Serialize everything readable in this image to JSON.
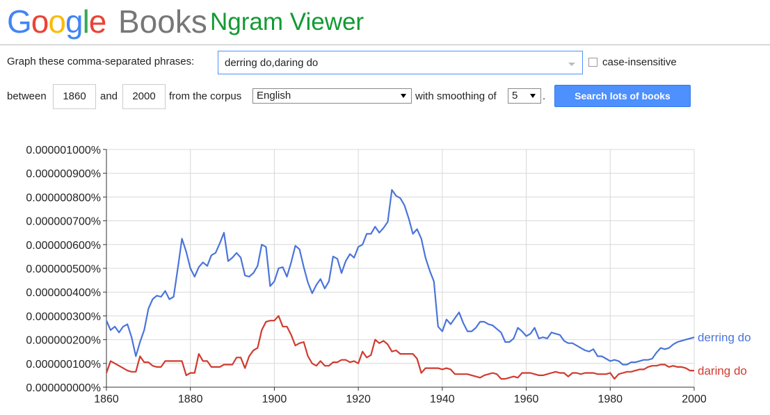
{
  "header": {
    "logo_letters": [
      {
        "ch": "G",
        "color": "#4285f4"
      },
      {
        "ch": "o",
        "color": "#ea4335"
      },
      {
        "ch": "o",
        "color": "#fbbc05"
      },
      {
        "ch": "g",
        "color": "#4285f4"
      },
      {
        "ch": "l",
        "color": "#34a853"
      },
      {
        "ch": "e",
        "color": "#ea4335"
      }
    ],
    "books": "Books",
    "title": "Ngram Viewer"
  },
  "form": {
    "phrases_label": "Graph these comma-separated phrases:",
    "phrases_value": "derring do,daring do",
    "case_insensitive": "case-insensitive",
    "between": "between",
    "start_year": "1860",
    "and": "and",
    "end_year": "2000",
    "from_corpus": "from the corpus",
    "corpus": "English",
    "with_smoothing": "with smoothing of",
    "smoothing": "5",
    "period": ".",
    "search_button": "Search lots of books"
  },
  "chart_data": {
    "type": "line",
    "xlim": [
      1860,
      2000
    ],
    "ylim": [
      0,
      1e-06
    ],
    "x_ticks": [
      "1860",
      "1880",
      "1900",
      "1920",
      "1940",
      "1960",
      "1980",
      "2000"
    ],
    "y_ticks": [
      "0.000000000%",
      "0.000000100%",
      "0.000000200%",
      "0.000000300%",
      "0.000000400%",
      "0.000000500%",
      "0.000000600%",
      "0.000000700%",
      "0.000000800%",
      "0.000000900%",
      "0.000001000%"
    ],
    "grid": true,
    "legend": "right-end-labels",
    "series": [
      {
        "name": "derring do",
        "color": "#4a74db",
        "points": [
          [
            1860,
            0.28
          ],
          [
            1861,
            0.24
          ],
          [
            1862,
            0.255
          ],
          [
            1863,
            0.23
          ],
          [
            1864,
            0.255
          ],
          [
            1865,
            0.265
          ],
          [
            1866,
            0.21
          ],
          [
            1867,
            0.13
          ],
          [
            1868,
            0.19
          ],
          [
            1869,
            0.24
          ],
          [
            1870,
            0.33
          ],
          [
            1871,
            0.37
          ],
          [
            1872,
            0.385
          ],
          [
            1873,
            0.38
          ],
          [
            1874,
            0.405
          ],
          [
            1875,
            0.37
          ],
          [
            1876,
            0.38
          ],
          [
            1877,
            0.5
          ],
          [
            1878,
            0.625
          ],
          [
            1879,
            0.57
          ],
          [
            1880,
            0.5
          ],
          [
            1881,
            0.465
          ],
          [
            1882,
            0.505
          ],
          [
            1883,
            0.525
          ],
          [
            1884,
            0.51
          ],
          [
            1885,
            0.555
          ],
          [
            1886,
            0.565
          ],
          [
            1887,
            0.605
          ],
          [
            1888,
            0.65
          ],
          [
            1889,
            0.53
          ],
          [
            1890,
            0.545
          ],
          [
            1891,
            0.565
          ],
          [
            1892,
            0.545
          ],
          [
            1893,
            0.47
          ],
          [
            1894,
            0.465
          ],
          [
            1895,
            0.48
          ],
          [
            1896,
            0.51
          ],
          [
            1897,
            0.6
          ],
          [
            1898,
            0.59
          ],
          [
            1899,
            0.425
          ],
          [
            1900,
            0.445
          ],
          [
            1901,
            0.5
          ],
          [
            1902,
            0.505
          ],
          [
            1903,
            0.465
          ],
          [
            1904,
            0.525
          ],
          [
            1905,
            0.595
          ],
          [
            1906,
            0.58
          ],
          [
            1907,
            0.505
          ],
          [
            1908,
            0.44
          ],
          [
            1909,
            0.395
          ],
          [
            1910,
            0.43
          ],
          [
            1911,
            0.455
          ],
          [
            1912,
            0.415
          ],
          [
            1913,
            0.445
          ],
          [
            1914,
            0.55
          ],
          [
            1915,
            0.54
          ],
          [
            1916,
            0.48
          ],
          [
            1917,
            0.53
          ],
          [
            1918,
            0.56
          ],
          [
            1919,
            0.545
          ],
          [
            1920,
            0.59
          ],
          [
            1921,
            0.6
          ],
          [
            1922,
            0.645
          ],
          [
            1923,
            0.645
          ],
          [
            1924,
            0.675
          ],
          [
            1925,
            0.65
          ],
          [
            1926,
            0.67
          ],
          [
            1927,
            0.695
          ],
          [
            1928,
            0.83
          ],
          [
            1929,
            0.805
          ],
          [
            1930,
            0.795
          ],
          [
            1931,
            0.765
          ],
          [
            1932,
            0.71
          ],
          [
            1933,
            0.645
          ],
          [
            1934,
            0.665
          ],
          [
            1935,
            0.625
          ],
          [
            1936,
            0.545
          ],
          [
            1937,
            0.49
          ],
          [
            1938,
            0.445
          ],
          [
            1939,
            0.255
          ],
          [
            1940,
            0.235
          ],
          [
            1941,
            0.285
          ],
          [
            1942,
            0.265
          ],
          [
            1943,
            0.29
          ],
          [
            1944,
            0.315
          ],
          [
            1945,
            0.27
          ],
          [
            1946,
            0.235
          ],
          [
            1947,
            0.235
          ],
          [
            1948,
            0.25
          ],
          [
            1949,
            0.275
          ],
          [
            1950,
            0.275
          ],
          [
            1951,
            0.265
          ],
          [
            1952,
            0.26
          ],
          [
            1953,
            0.245
          ],
          [
            1954,
            0.23
          ],
          [
            1955,
            0.19
          ],
          [
            1956,
            0.19
          ],
          [
            1957,
            0.205
          ],
          [
            1958,
            0.25
          ],
          [
            1959,
            0.235
          ],
          [
            1960,
            0.215
          ],
          [
            1961,
            0.225
          ],
          [
            1962,
            0.25
          ],
          [
            1963,
            0.205
          ],
          [
            1964,
            0.21
          ],
          [
            1965,
            0.205
          ],
          [
            1966,
            0.23
          ],
          [
            1967,
            0.225
          ],
          [
            1968,
            0.22
          ],
          [
            1969,
            0.195
          ],
          [
            1970,
            0.185
          ],
          [
            1971,
            0.185
          ],
          [
            1972,
            0.175
          ],
          [
            1973,
            0.165
          ],
          [
            1974,
            0.155
          ],
          [
            1975,
            0.15
          ],
          [
            1976,
            0.16
          ],
          [
            1977,
            0.13
          ],
          [
            1978,
            0.13
          ],
          [
            1979,
            0.12
          ],
          [
            1980,
            0.11
          ],
          [
            1981,
            0.115
          ],
          [
            1982,
            0.11
          ],
          [
            1983,
            0.095
          ],
          [
            1984,
            0.095
          ],
          [
            1985,
            0.105
          ],
          [
            1986,
            0.105
          ],
          [
            1987,
            0.11
          ],
          [
            1988,
            0.115
          ],
          [
            1989,
            0.115
          ],
          [
            1990,
            0.12
          ],
          [
            1991,
            0.145
          ],
          [
            1992,
            0.165
          ],
          [
            1993,
            0.16
          ],
          [
            1994,
            0.165
          ],
          [
            1995,
            0.18
          ],
          [
            1996,
            0.19
          ],
          [
            1997,
            0.195
          ],
          [
            1998,
            0.2
          ],
          [
            1999,
            0.205
          ],
          [
            2000,
            0.21
          ]
        ]
      },
      {
        "name": "daring do",
        "color": "#d03a2e",
        "points": [
          [
            1860,
            0.06
          ],
          [
            1861,
            0.11
          ],
          [
            1862,
            0.1
          ],
          [
            1863,
            0.09
          ],
          [
            1864,
            0.08
          ],
          [
            1865,
            0.07
          ],
          [
            1866,
            0.065
          ],
          [
            1867,
            0.065
          ],
          [
            1868,
            0.13
          ],
          [
            1869,
            0.105
          ],
          [
            1870,
            0.105
          ],
          [
            1871,
            0.09
          ],
          [
            1872,
            0.085
          ],
          [
            1873,
            0.085
          ],
          [
            1874,
            0.11
          ],
          [
            1875,
            0.11
          ],
          [
            1876,
            0.11
          ],
          [
            1877,
            0.11
          ],
          [
            1878,
            0.11
          ],
          [
            1879,
            0.05
          ],
          [
            1880,
            0.06
          ],
          [
            1881,
            0.06
          ],
          [
            1882,
            0.14
          ],
          [
            1883,
            0.11
          ],
          [
            1884,
            0.11
          ],
          [
            1885,
            0.085
          ],
          [
            1886,
            0.085
          ],
          [
            1887,
            0.085
          ],
          [
            1888,
            0.095
          ],
          [
            1889,
            0.095
          ],
          [
            1890,
            0.095
          ],
          [
            1891,
            0.125
          ],
          [
            1892,
            0.125
          ],
          [
            1893,
            0.08
          ],
          [
            1894,
            0.13
          ],
          [
            1895,
            0.155
          ],
          [
            1896,
            0.165
          ],
          [
            1897,
            0.24
          ],
          [
            1898,
            0.275
          ],
          [
            1899,
            0.28
          ],
          [
            1900,
            0.28
          ],
          [
            1901,
            0.3
          ],
          [
            1902,
            0.255
          ],
          [
            1903,
            0.255
          ],
          [
            1904,
            0.22
          ],
          [
            1905,
            0.175
          ],
          [
            1906,
            0.185
          ],
          [
            1907,
            0.19
          ],
          [
            1908,
            0.13
          ],
          [
            1909,
            0.1
          ],
          [
            1910,
            0.09
          ],
          [
            1911,
            0.11
          ],
          [
            1912,
            0.09
          ],
          [
            1913,
            0.09
          ],
          [
            1914,
            0.105
          ],
          [
            1915,
            0.105
          ],
          [
            1916,
            0.115
          ],
          [
            1917,
            0.115
          ],
          [
            1918,
            0.105
          ],
          [
            1919,
            0.11
          ],
          [
            1920,
            0.1
          ],
          [
            1921,
            0.15
          ],
          [
            1922,
            0.125
          ],
          [
            1923,
            0.135
          ],
          [
            1924,
            0.2
          ],
          [
            1925,
            0.185
          ],
          [
            1926,
            0.195
          ],
          [
            1927,
            0.18
          ],
          [
            1928,
            0.15
          ],
          [
            1929,
            0.155
          ],
          [
            1930,
            0.14
          ],
          [
            1931,
            0.14
          ],
          [
            1932,
            0.14
          ],
          [
            1933,
            0.14
          ],
          [
            1934,
            0.12
          ],
          [
            1935,
            0.06
          ],
          [
            1936,
            0.08
          ],
          [
            1937,
            0.08
          ],
          [
            1938,
            0.08
          ],
          [
            1939,
            0.08
          ],
          [
            1940,
            0.075
          ],
          [
            1941,
            0.08
          ],
          [
            1942,
            0.075
          ],
          [
            1943,
            0.055
          ],
          [
            1944,
            0.055
          ],
          [
            1945,
            0.055
          ],
          [
            1946,
            0.055
          ],
          [
            1947,
            0.05
          ],
          [
            1948,
            0.045
          ],
          [
            1949,
            0.04
          ],
          [
            1950,
            0.05
          ],
          [
            1951,
            0.055
          ],
          [
            1952,
            0.06
          ],
          [
            1953,
            0.055
          ],
          [
            1954,
            0.035
          ],
          [
            1955,
            0.035
          ],
          [
            1956,
            0.04
          ],
          [
            1957,
            0.045
          ],
          [
            1958,
            0.04
          ],
          [
            1959,
            0.06
          ],
          [
            1960,
            0.06
          ],
          [
            1961,
            0.06
          ],
          [
            1962,
            0.055
          ],
          [
            1963,
            0.05
          ],
          [
            1964,
            0.05
          ],
          [
            1965,
            0.055
          ],
          [
            1966,
            0.06
          ],
          [
            1967,
            0.065
          ],
          [
            1968,
            0.06
          ],
          [
            1969,
            0.06
          ],
          [
            1970,
            0.045
          ],
          [
            1971,
            0.06
          ],
          [
            1972,
            0.06
          ],
          [
            1973,
            0.055
          ],
          [
            1974,
            0.06
          ],
          [
            1975,
            0.06
          ],
          [
            1976,
            0.06
          ],
          [
            1977,
            0.055
          ],
          [
            1978,
            0.055
          ],
          [
            1979,
            0.055
          ],
          [
            1980,
            0.06
          ],
          [
            1981,
            0.035
          ],
          [
            1982,
            0.055
          ],
          [
            1983,
            0.06
          ],
          [
            1984,
            0.065
          ],
          [
            1985,
            0.065
          ],
          [
            1986,
            0.07
          ],
          [
            1987,
            0.075
          ],
          [
            1988,
            0.075
          ],
          [
            1989,
            0.085
          ],
          [
            1990,
            0.09
          ],
          [
            1991,
            0.09
          ],
          [
            1992,
            0.095
          ],
          [
            1993,
            0.095
          ],
          [
            1994,
            0.085
          ],
          [
            1995,
            0.09
          ],
          [
            1996,
            0.085
          ],
          [
            1997,
            0.085
          ],
          [
            1998,
            0.08
          ],
          [
            1999,
            0.07
          ],
          [
            2000,
            0.07
          ]
        ]
      }
    ],
    "y_unit_scale_note": "values in points are in units of 0.000001% (i.e. 0.28 = 0.000000280%)"
  }
}
